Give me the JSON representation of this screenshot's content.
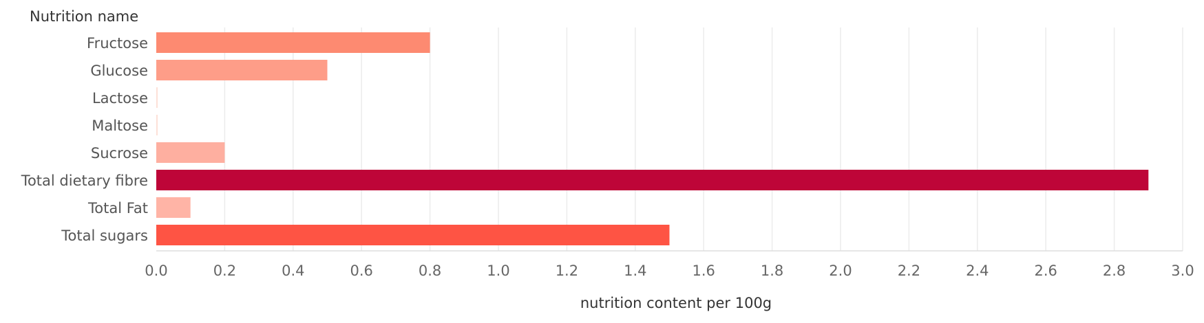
{
  "chart_data": {
    "type": "bar",
    "orientation": "horizontal",
    "row_header": "Nutrition name",
    "xlabel": "nutrition content per 100g",
    "categories": [
      "Fructose",
      "Glucose",
      "Lactose",
      "Maltose",
      "Sucrose",
      "Total dietary fibre",
      "Total Fat",
      "Total sugars"
    ],
    "values": [
      0.8,
      0.5,
      0.0,
      0.0,
      0.2,
      2.9,
      0.1,
      1.5
    ],
    "colors": [
      "#fd8a71",
      "#fe9d88",
      "#fde0d7",
      "#fde0d7",
      "#feafa0",
      "#be0538",
      "#ffb4a6",
      "#fe5444"
    ],
    "xlim": [
      0.0,
      3.0
    ],
    "x_ticks": [
      "0.0",
      "0.2",
      "0.4",
      "0.6",
      "0.8",
      "1.0",
      "1.2",
      "1.4",
      "1.6",
      "1.8",
      "2.0",
      "2.2",
      "2.4",
      "2.6",
      "2.8",
      "3.0"
    ],
    "grid": true,
    "legend": "none"
  }
}
